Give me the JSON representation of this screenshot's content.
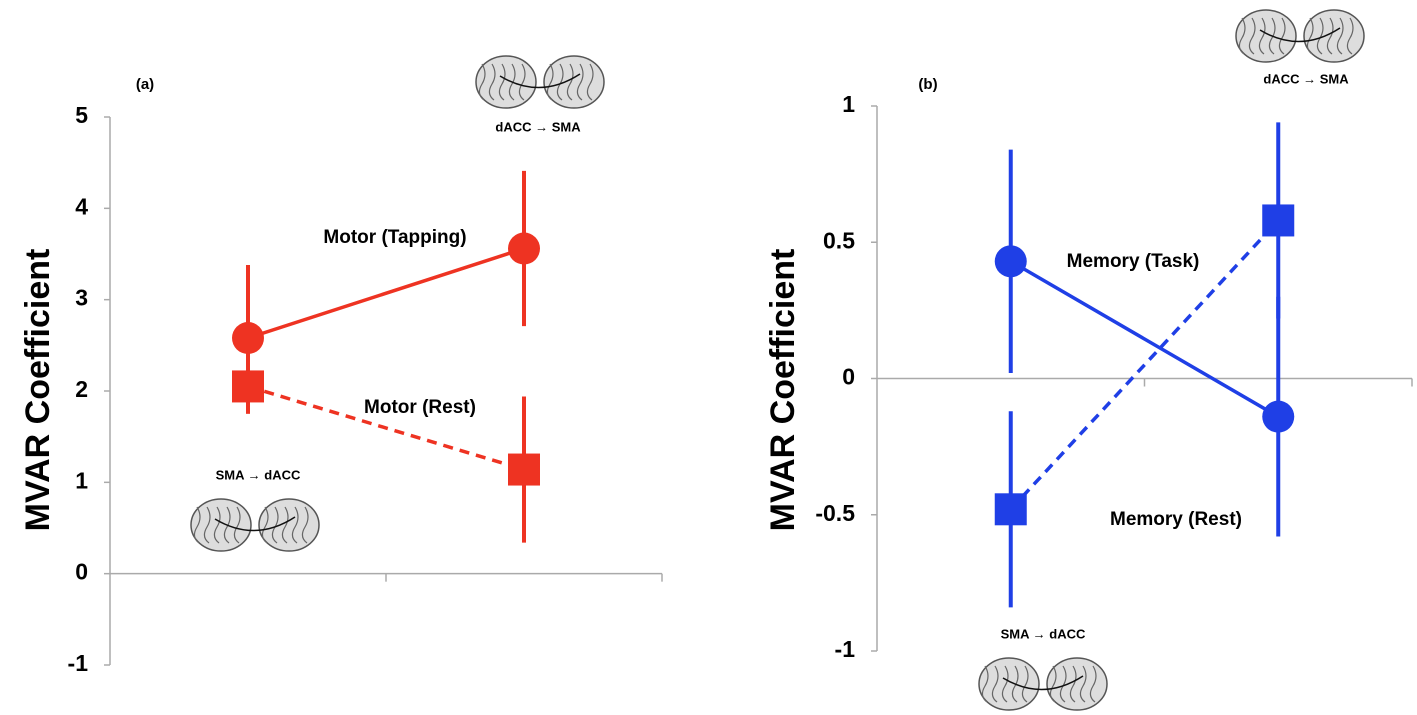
{
  "chart_data": [
    {
      "type": "line",
      "panel_label": "(a)",
      "y_label": "MVAR Coefficient",
      "categories": [
        null,
        null
      ],
      "ylim": [
        -1,
        5
      ],
      "yticks": [
        -1,
        0,
        1,
        2,
        3,
        4,
        5
      ],
      "series": [
        {
          "name": "Motor (Tapping)",
          "color": "#ee3322",
          "marker": "circle",
          "linestyle": "solid",
          "values": [
            2.58,
            3.56
          ],
          "errors": [
            0.8,
            0.85
          ]
        },
        {
          "name": "Motor (Rest)",
          "color": "#ee3322",
          "marker": "square",
          "linestyle": "dashed",
          "values": [
            2.05,
            1.14
          ],
          "errors": [
            0.3,
            0.8
          ]
        }
      ],
      "annotations": [
        "SMA → dACC",
        "dACC → SMA"
      ]
    },
    {
      "type": "line",
      "panel_label": "(b)",
      "y_label": "MVAR Coefficient",
      "categories": [
        null,
        null
      ],
      "ylim": [
        -1,
        1
      ],
      "yticks": [
        -1,
        -0.5,
        0,
        0.5,
        1
      ],
      "series": [
        {
          "name": "Memory (Task)",
          "color": "#1f3fe6",
          "marker": "circle",
          "linestyle": "solid",
          "values": [
            0.43,
            -0.14
          ],
          "errors": [
            0.41,
            0.44
          ]
        },
        {
          "name": "Memory (Rest)",
          "color": "#1f3fe6",
          "marker": "square",
          "linestyle": "dashed",
          "values": [
            -0.48,
            0.58
          ],
          "errors": [
            0.36,
            0.36
          ]
        }
      ],
      "annotations": [
        "SMA → dACC",
        "dACC → SMA"
      ]
    }
  ]
}
